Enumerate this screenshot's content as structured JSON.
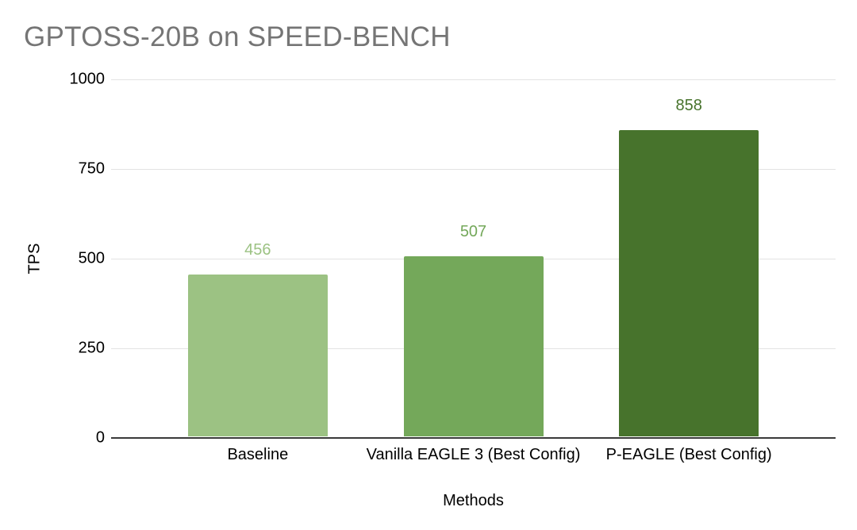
{
  "chart_data": {
    "type": "bar",
    "title": "GPTOSS-20B on SPEED-BENCH",
    "xlabel": "Methods",
    "ylabel": "TPS",
    "categories": [
      "Baseline",
      "Vanilla EAGLE 3 (Best Config)",
      "P-EAGLE (Best Config)"
    ],
    "values": [
      456,
      507,
      858
    ],
    "data_labels": [
      "456",
      "507",
      "858"
    ],
    "bar_colors": [
      "#9cc283",
      "#74a85a",
      "#47732c"
    ],
    "label_colors": [
      "#9cc283",
      "#74a85a",
      "#47732c"
    ],
    "ylim": [
      0,
      1000
    ],
    "yticks": [
      0,
      250,
      500,
      750,
      1000
    ],
    "grid": true,
    "legend_position": "none",
    "colors": {
      "background": "#ffffff",
      "title": "#757575",
      "gridline": "#e3e3e3",
      "axis_line": "#3a3a3a",
      "tick_label": "#000000"
    }
  }
}
